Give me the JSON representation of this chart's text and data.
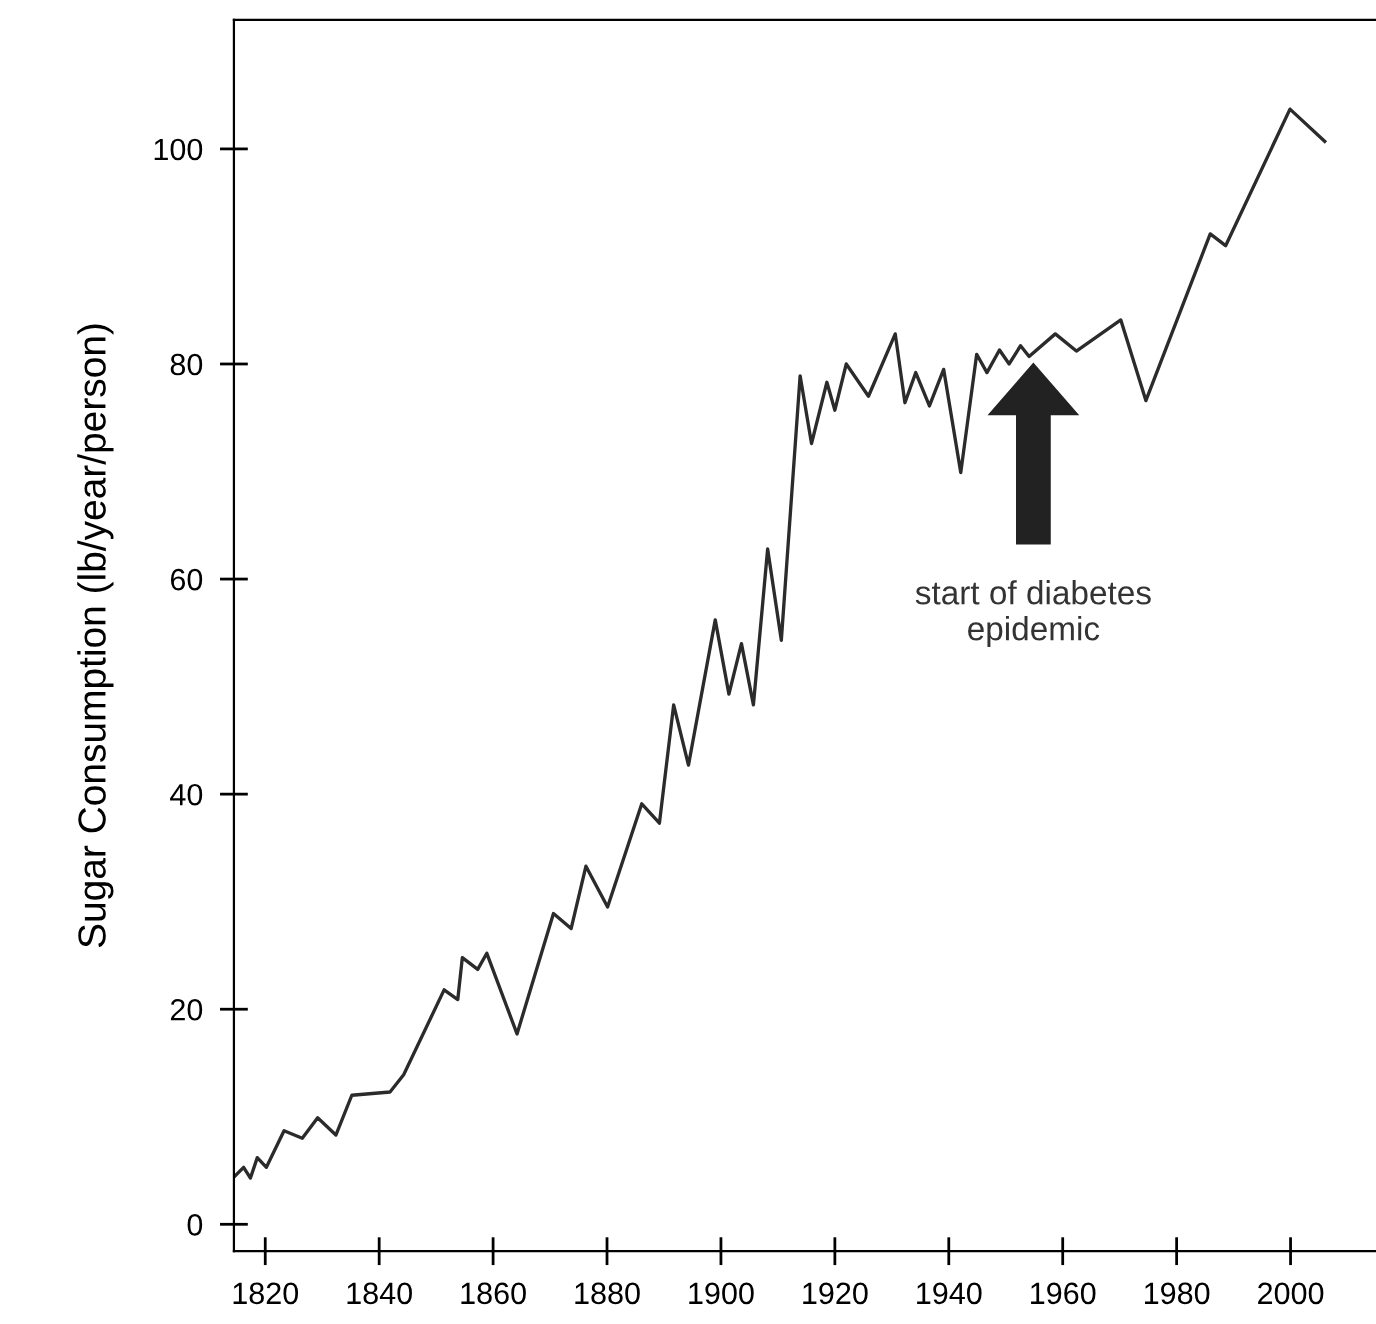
{
  "chart_data": {
    "type": "line",
    "ylabel": "Sugar Consumption (lb/year/person)",
    "x": [
      1814.7,
      1816.2,
      1817.4,
      1818.6,
      1820.2,
      1823.3,
      1826.5,
      1829.2,
      1832.4,
      1835.2,
      1841.9,
      1844.3,
      1851.4,
      1853.8,
      1854.6,
      1857.3,
      1858.9,
      1864.2,
      1870.6,
      1873.7,
      1876.3,
      1880.1,
      1886.1,
      1889.2,
      1891.7,
      1894.3,
      1899.0,
      1901.4,
      1903.6,
      1905.7,
      1908.2,
      1910.6,
      1913.9,
      1915.9,
      1918.6,
      1920.0,
      1922.0,
      1925.9,
      1930.6,
      1932.3,
      1934.2,
      1936.6,
      1939.1,
      1942.1,
      1944.9,
      1946.7,
      1948.9,
      1950.6,
      1952.6,
      1954.1,
      1958.7,
      1962.4,
      1970.2,
      1974.6,
      1985.9,
      1988.6,
      1999.9,
      2006
    ],
    "series": [
      {
        "color": "#2b2b2b",
        "values": [
          4.5,
          5.3,
          4.3,
          6.2,
          5.3,
          8.7,
          8.0,
          9.9,
          8.3,
          12.0,
          12.3,
          13.9,
          21.8,
          20.9,
          24.8,
          23.7,
          25.2,
          17.7,
          28.9,
          27.5,
          33.3,
          29.5,
          39.1,
          37.3,
          48.3,
          42.7,
          56.2,
          49.3,
          54.0,
          48.3,
          62.8,
          54.3,
          78.9,
          72.6,
          78.3,
          75.7,
          80.0,
          77.0,
          82.8,
          76.4,
          79.2,
          76.1,
          79.5,
          69.9,
          80.9,
          79.2,
          81.3,
          80.0,
          81.7,
          80.7,
          82.8,
          81.2,
          84.1,
          76.6,
          92.1,
          91.0,
          103.7,
          100.7
        ]
      }
    ],
    "xlim": [
      1814.5,
      2015
    ],
    "ylim": [
      -2.5,
      112
    ],
    "xticks": [
      1820,
      1840,
      1860,
      1880,
      1900,
      1920,
      1940,
      1960,
      1980,
      2000
    ],
    "yticks": [
      0,
      20,
      40,
      60,
      80,
      100
    ],
    "annotations": [
      "start of diabetes\nepidemic"
    ],
    "marker": "none",
    "line_style": "solid"
  }
}
